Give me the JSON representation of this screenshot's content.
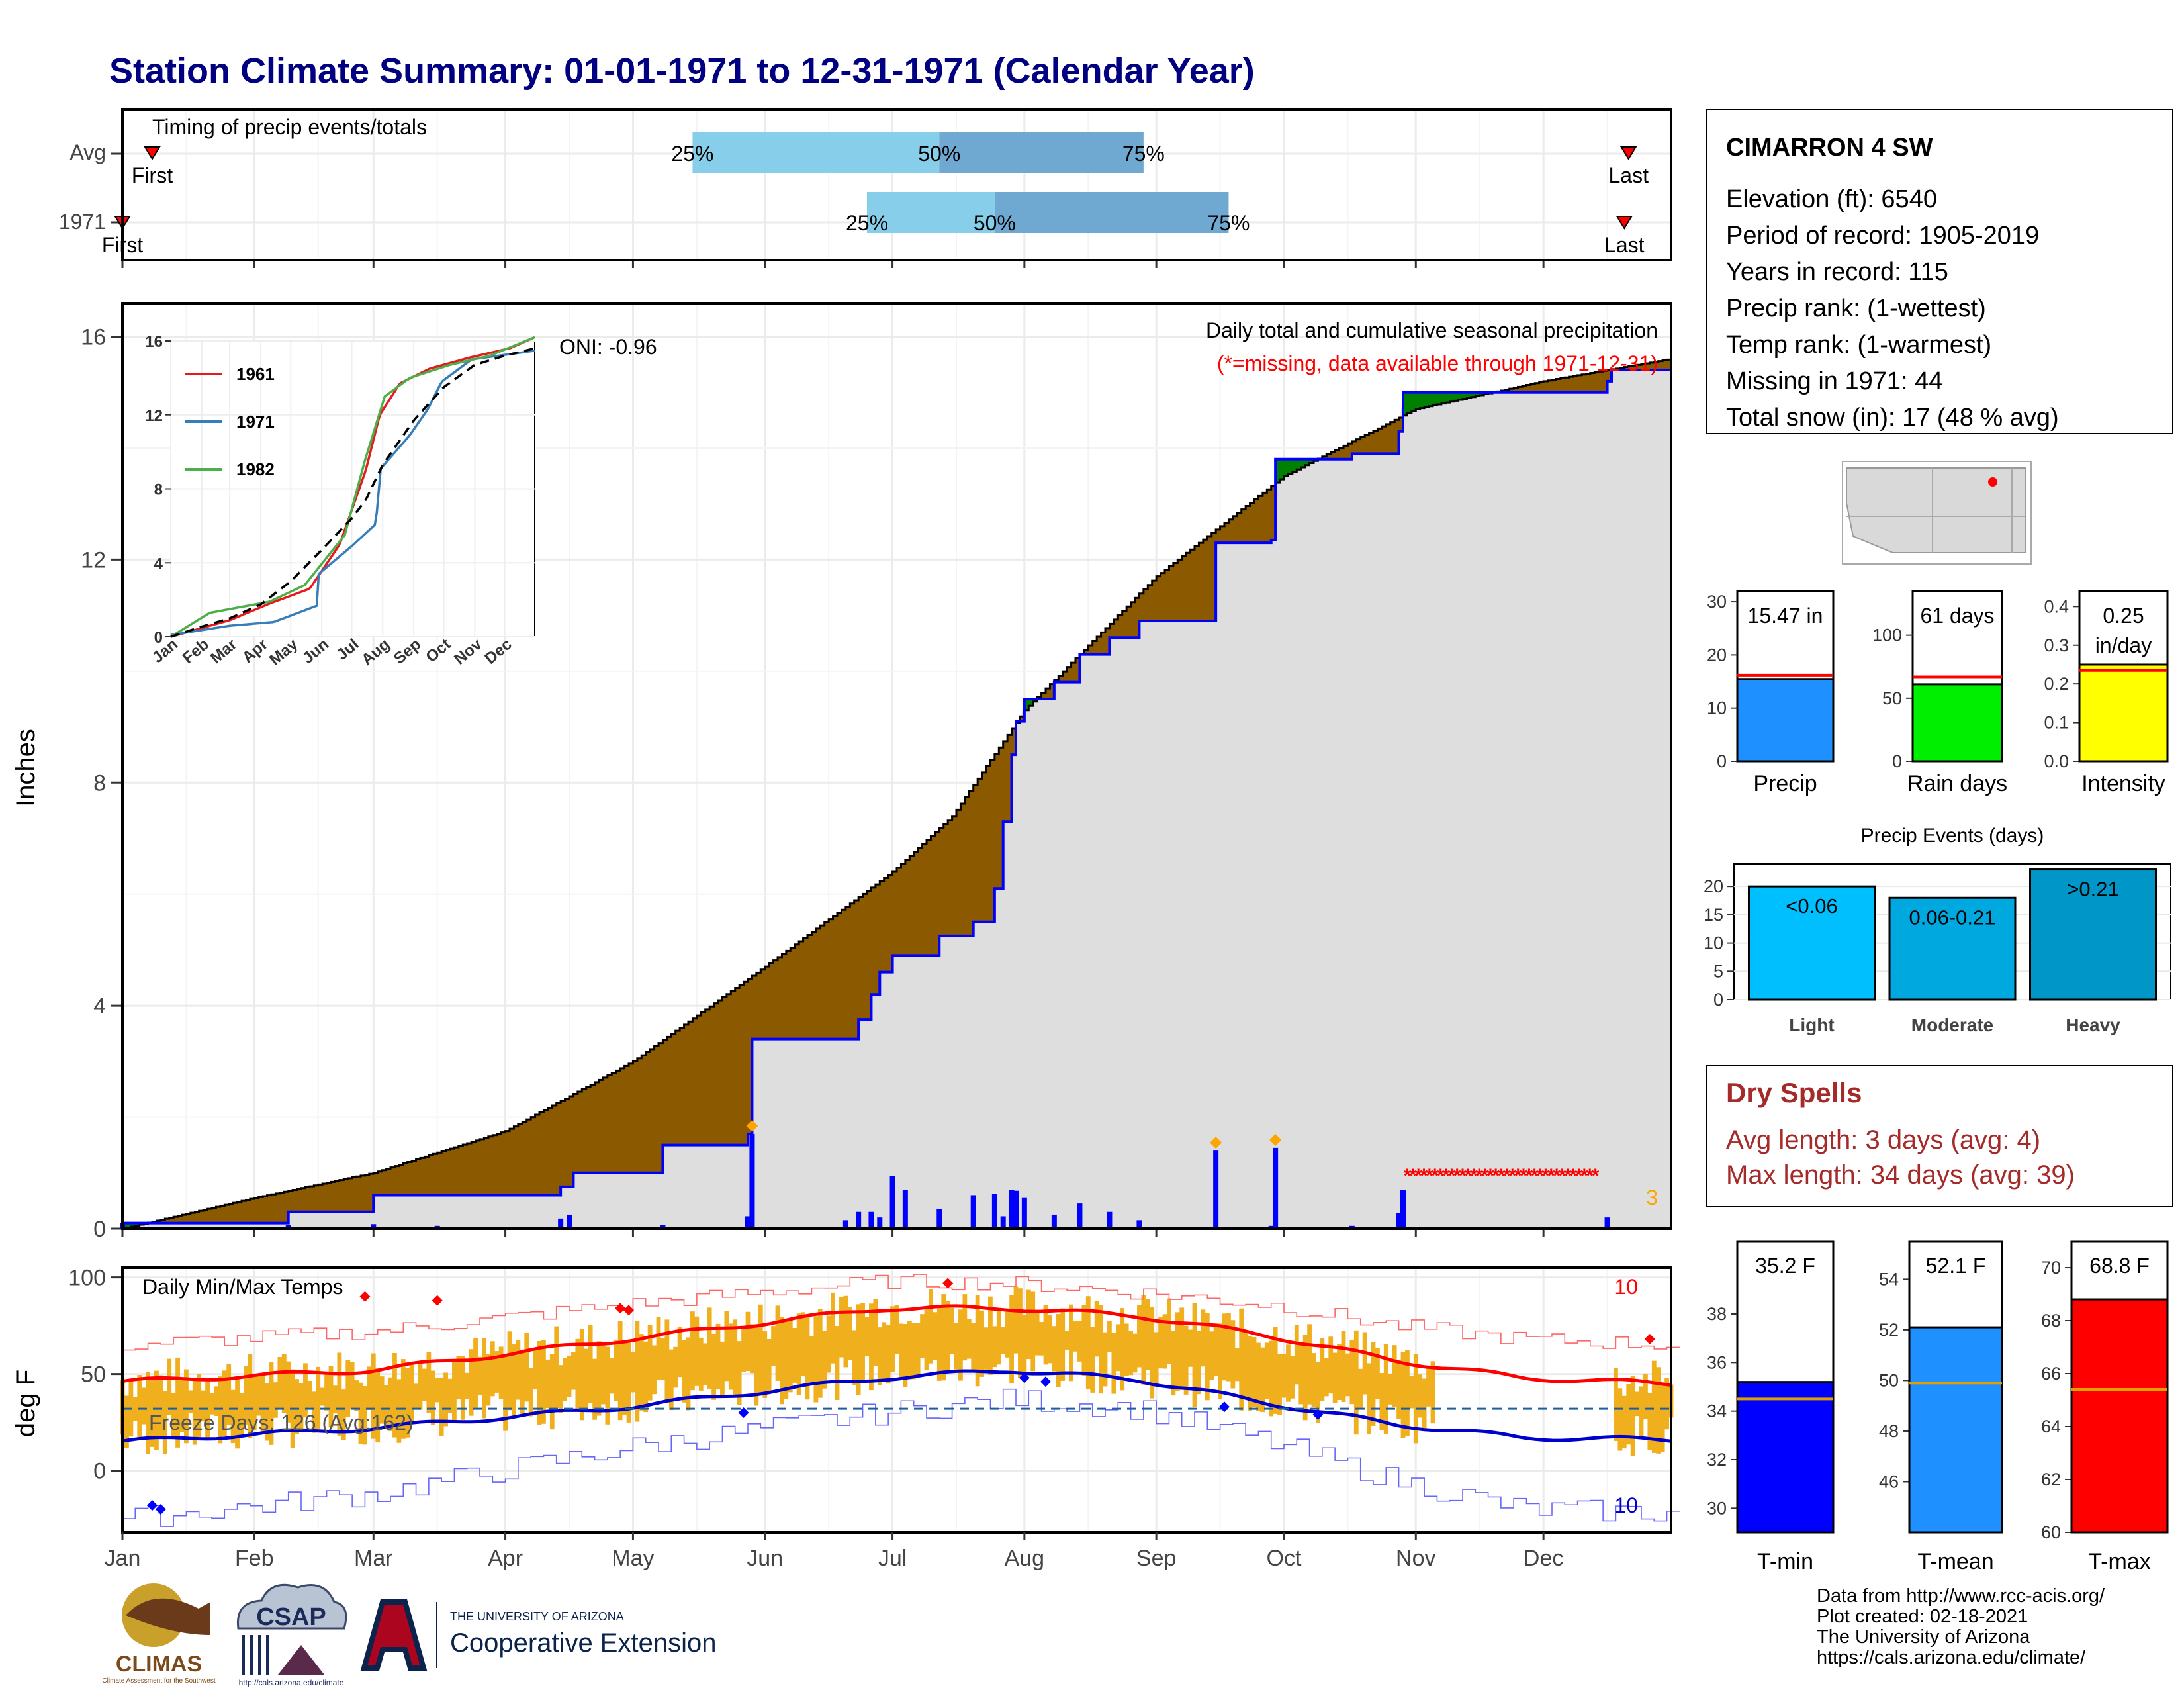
{
  "page": {
    "title": "Station Climate Summary: 01-01-1971 to 12-31-1971 (Calendar Year)",
    "credits": [
      "Data from http://www.rcc-acis.org/",
      "Plot created: 02-18-2021",
      "The University of Arizona",
      "https://cals.arizona.edu/climate/"
    ],
    "logos": {
      "climas": "CLIMAS",
      "climas_sub": "Climate Assessment for the Southwest",
      "csap": "CSAP",
      "csap_url": "http://cals.arizona.edu/climate",
      "ua_line1": "THE UNIVERSITY OF ARIZONA",
      "ua_line2": "Cooperative Extension"
    }
  },
  "station": {
    "name": "CIMARRON 4 SW",
    "lines": [
      "Elevation (ft): 6540",
      "Period of record: 1905-2019",
      "Years in record: 115",
      "Precip rank:  (1-wettest)",
      "Temp rank:  (1-warmest)",
      "Missing in 1971: 44",
      "Total snow (in): 17 (48 % avg)"
    ],
    "colors": {
      "title": "#000080",
      "dry": "#a52a2a",
      "precip_fill": "#8b5a00",
      "wet_fill": "#008000",
      "daily_bar": "#0000ff",
      "temp_bar": "#f0b01e",
      "tmax": "#ff0000",
      "tmin": "#0000cc"
    }
  },
  "months": [
    "Jan",
    "Feb",
    "Mar",
    "Apr",
    "May",
    "Jun",
    "Jul",
    "Aug",
    "Sep",
    "Oct",
    "Nov",
    "Dec"
  ],
  "chart_data": [
    {
      "type": "bar",
      "id": "timing",
      "title": "Timing of precip events/totals",
      "rows": [
        "Avg",
        "1971"
      ],
      "avg": {
        "first_day": 8,
        "p25_day": 135,
        "p50_day": 193,
        "p75_day": 241,
        "last_day": 355,
        "first_label": "First",
        "last_label": "Last",
        "p25_label": "25%",
        "p50_label": "50%",
        "p75_label": "75%"
      },
      "y1971": {
        "first_day": 1,
        "p25_day": 176,
        "p50_day": 206,
        "p75_day": 261,
        "last_day": 354,
        "first_label": "First",
        "last_label": "Last",
        "p25_label": "25%",
        "p50_label": "50%",
        "p75_label": "75%"
      }
    },
    {
      "type": "area",
      "id": "cumulative_precip",
      "title": "Daily total and cumulative seasonal precipitation",
      "subtitle": "(*=missing, data available through 1971-12-31)",
      "annotation": "ONI: -0.96",
      "ylabel": "Inches",
      "ylim": [
        0,
        16.6
      ],
      "yticks": [
        0,
        4,
        8,
        12,
        16
      ],
      "missing_day_range": [
        303,
        348
      ],
      "corner_number": "3",
      "avg_cumulative": [
        [
          1,
          0
        ],
        [
          32,
          0.55
        ],
        [
          60,
          1.0
        ],
        [
          91,
          1.75
        ],
        [
          121,
          3.0
        ],
        [
          152,
          4.7
        ],
        [
          182,
          6.4
        ],
        [
          196,
          7.4
        ],
        [
          213,
          9.3
        ],
        [
          244,
          11.7
        ],
        [
          274,
          13.5
        ],
        [
          305,
          14.7
        ],
        [
          335,
          15.2
        ],
        [
          365,
          15.6
        ]
      ],
      "y1971_cumulative": [
        [
          1,
          0.1
        ],
        [
          40,
          0.3
        ],
        [
          60,
          0.6
        ],
        [
          75,
          0.6
        ],
        [
          104,
          0.75
        ],
        [
          107,
          1.0
        ],
        [
          128,
          1.5
        ],
        [
          148,
          1.7
        ],
        [
          149,
          3.4
        ],
        [
          171,
          3.4
        ],
        [
          174,
          3.75
        ],
        [
          177,
          4.2
        ],
        [
          179,
          4.6
        ],
        [
          182,
          4.9
        ],
        [
          193,
          5.25
        ],
        [
          201,
          5.5
        ],
        [
          206,
          6.1
        ],
        [
          208,
          7.3
        ],
        [
          210,
          8.5
        ],
        [
          211,
          9.1
        ],
        [
          213,
          9.5
        ],
        [
          220,
          9.8
        ],
        [
          226,
          10.3
        ],
        [
          233,
          10.6
        ],
        [
          240,
          10.9
        ],
        [
          256,
          10.9
        ],
        [
          258,
          12.3
        ],
        [
          271,
          12.35
        ],
        [
          272,
          13.8
        ],
        [
          290,
          13.9
        ],
        [
          301,
          14.3
        ],
        [
          302,
          15.0
        ],
        [
          350,
          15.2
        ],
        [
          351,
          15.4
        ],
        [
          365,
          15.47
        ]
      ],
      "daily_bars": [
        [
          1,
          0.1
        ],
        [
          40,
          0.06
        ],
        [
          60,
          0.08
        ],
        [
          75,
          0.05
        ],
        [
          104,
          0.18
        ],
        [
          106,
          0.25
        ],
        [
          128,
          0.06
        ],
        [
          148,
          0.22
        ],
        [
          149,
          1.7
        ],
        [
          171,
          0.15
        ],
        [
          174,
          0.3
        ],
        [
          177,
          0.3
        ],
        [
          179,
          0.2
        ],
        [
          182,
          0.95
        ],
        [
          185,
          0.7
        ],
        [
          193,
          0.35
        ],
        [
          201,
          0.6
        ],
        [
          206,
          0.62
        ],
        [
          208,
          0.22
        ],
        [
          210,
          0.7
        ],
        [
          211,
          0.68
        ],
        [
          213,
          0.55
        ],
        [
          220,
          0.25
        ],
        [
          226,
          0.45
        ],
        [
          233,
          0.3
        ],
        [
          240,
          0.15
        ],
        [
          258,
          1.4
        ],
        [
          271,
          0.05
        ],
        [
          272,
          1.45
        ],
        [
          290,
          0.05
        ],
        [
          301,
          0.28
        ],
        [
          302,
          0.7
        ],
        [
          350,
          0.2
        ]
      ],
      "markers_days": [
        149,
        258,
        272
      ]
    },
    {
      "type": "line",
      "id": "inset",
      "ylim": [
        0,
        16
      ],
      "yticks": [
        0,
        4,
        8,
        12,
        16
      ],
      "series": [
        {
          "name": "1961",
          "color": "#e41a1c",
          "points": [
            [
              1,
              0
            ],
            [
              60,
              0.9
            ],
            [
              100,
              1.8
            ],
            [
              140,
              2.6
            ],
            [
              170,
              5.0
            ],
            [
              196,
              9.0
            ],
            [
              210,
              12.0
            ],
            [
              230,
              13.7
            ],
            [
              260,
              14.5
            ],
            [
              300,
              15.1
            ],
            [
              340,
              15.6
            ],
            [
              365,
              16.2
            ]
          ]
        },
        {
          "name": "1971",
          "color": "#377eb8",
          "points": [
            [
              1,
              0.1
            ],
            [
              60,
              0.6
            ],
            [
              104,
              0.8
            ],
            [
              148,
              1.7
            ],
            [
              149,
              3.4
            ],
            [
              182,
              4.9
            ],
            [
              206,
              6.1
            ],
            [
              211,
              9.1
            ],
            [
              240,
              10.9
            ],
            [
              258,
              12.3
            ],
            [
              272,
              13.8
            ],
            [
              302,
              15.0
            ],
            [
              365,
              15.47
            ]
          ]
        },
        {
          "name": "1982",
          "color": "#4daf4a",
          "points": [
            [
              1,
              0
            ],
            [
              40,
              1.3
            ],
            [
              100,
              1.9
            ],
            [
              135,
              2.8
            ],
            [
              175,
              5.5
            ],
            [
              195,
              9.5
            ],
            [
              215,
              13.0
            ],
            [
              240,
              14.0
            ],
            [
              280,
              14.7
            ],
            [
              320,
              15.2
            ],
            [
              365,
              16.2
            ]
          ]
        },
        {
          "name": "",
          "color": "#000000",
          "dashed": true,
          "points": [
            [
              1,
              0
            ],
            [
              32,
              0.55
            ],
            [
              60,
              1.0
            ],
            [
              91,
              1.75
            ],
            [
              121,
              3.0
            ],
            [
              152,
              4.7
            ],
            [
              182,
              6.4
            ],
            [
              196,
              7.4
            ],
            [
              213,
              9.3
            ],
            [
              244,
              11.7
            ],
            [
              274,
              13.5
            ],
            [
              305,
              14.7
            ],
            [
              335,
              15.2
            ],
            [
              365,
              15.6
            ]
          ]
        }
      ]
    },
    {
      "type": "line",
      "id": "temps",
      "title": "Daily Min/Max Temps",
      "ylabel": "deg F",
      "ylim": [
        -32,
        105
      ],
      "yticks": [
        0,
        50,
        100
      ],
      "freeze_label": "Freeze Days: 126 (Avg:162)",
      "freeze_level": 32,
      "tmax_label_count": "10",
      "tmin_label_count": "10",
      "avg_tmax": [
        [
          1,
          46
        ],
        [
          60,
          52
        ],
        [
          120,
          68
        ],
        [
          180,
          84
        ],
        [
          210,
          84
        ],
        [
          240,
          80
        ],
        [
          270,
          70
        ],
        [
          300,
          57
        ],
        [
          330,
          48
        ],
        [
          365,
          45
        ]
      ],
      "avg_tmin": [
        [
          1,
          15
        ],
        [
          60,
          22
        ],
        [
          120,
          33
        ],
        [
          180,
          48
        ],
        [
          210,
          52
        ],
        [
          240,
          47
        ],
        [
          270,
          35
        ],
        [
          300,
          24
        ],
        [
          330,
          17
        ],
        [
          365,
          16
        ]
      ],
      "record_high": [
        [
          1,
          65
        ],
        [
          60,
          72
        ],
        [
          120,
          86
        ],
        [
          180,
          98
        ],
        [
          210,
          97
        ],
        [
          240,
          92
        ],
        [
          270,
          86
        ],
        [
          300,
          75
        ],
        [
          330,
          68
        ],
        [
          365,
          65
        ]
      ],
      "record_low": [
        [
          1,
          -25
        ],
        [
          60,
          -12
        ],
        [
          120,
          12
        ],
        [
          180,
          30
        ],
        [
          210,
          37
        ],
        [
          240,
          32
        ],
        [
          270,
          15
        ],
        [
          300,
          -5
        ],
        [
          330,
          -20
        ],
        [
          365,
          -22
        ]
      ],
      "daily_range_days": [
        1,
        309
      ]
    },
    {
      "type": "bar",
      "id": "precip_total",
      "label": "Precip",
      "value_label": "15.47 in",
      "value": 15.47,
      "avg": 16.2,
      "ylim": [
        0,
        32
      ],
      "yticks": [
        0,
        10,
        20,
        30
      ],
      "color": "#1e90ff"
    },
    {
      "type": "bar",
      "id": "rain_days",
      "label": "Rain days",
      "value_label": "61 days",
      "value": 61,
      "avg": 67,
      "ylim": [
        0,
        135
      ],
      "yticks": [
        0,
        50,
        100
      ],
      "color": "#00ee00"
    },
    {
      "type": "bar",
      "id": "intensity",
      "label": "Intensity",
      "value_label": "0.25",
      "value_label2": "in/day",
      "value": 0.25,
      "avg": 0.235,
      "ylim": [
        0,
        0.44
      ],
      "yticks": [
        0.0,
        0.1,
        0.2,
        0.3,
        0.4
      ],
      "color": "#ffff00"
    },
    {
      "type": "bar",
      "id": "precip_events",
      "title": "Precip Events (days)",
      "categories": [
        "Light",
        "Moderate",
        "Heavy"
      ],
      "bar_labels": [
        "<0.06",
        "0.06-0.21",
        ">0.21"
      ],
      "values": [
        20,
        18,
        23
      ],
      "colors": [
        "#00bfff",
        "#00a8e0",
        "#0096c8"
      ],
      "ylim": [
        0,
        24
      ],
      "yticks": [
        0,
        5,
        10,
        15,
        20
      ]
    },
    {
      "type": "bar",
      "id": "tmin",
      "label": "T-min",
      "value_label": "35.2 F",
      "value": 35.2,
      "avg": 34.5,
      "ylim": [
        29,
        41
      ],
      "yticks": [
        30,
        32,
        34,
        36,
        38
      ],
      "color": "#0000ff"
    },
    {
      "type": "bar",
      "id": "tmean",
      "label": "T-mean",
      "value_label": "52.1 F",
      "value": 52.1,
      "avg": 49.9,
      "ylim": [
        44,
        55.5
      ],
      "yticks": [
        46,
        48,
        50,
        52,
        54
      ],
      "color": "#1e90ff"
    },
    {
      "type": "bar",
      "id": "tmax",
      "label": "T-max",
      "value_label": "68.8 F",
      "value": 68.8,
      "avg": 65.4,
      "ylim": [
        60,
        71
      ],
      "yticks": [
        60,
        62,
        64,
        66,
        68,
        70
      ],
      "color": "#ff0000"
    }
  ],
  "dry_spells": {
    "title": "Dry Spells",
    "avg_line": "Avg length: 3 days (avg: 4)",
    "max_line": "Max length: 34 days (avg: 39)"
  }
}
